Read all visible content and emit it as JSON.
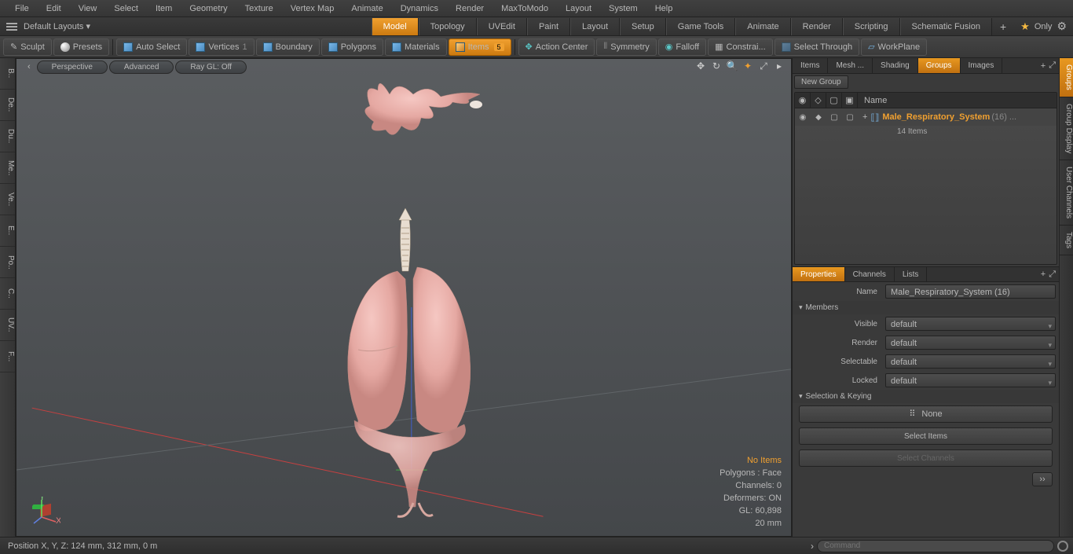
{
  "menu": [
    "File",
    "Edit",
    "View",
    "Select",
    "Item",
    "Geometry",
    "Texture",
    "Vertex Map",
    "Animate",
    "Dynamics",
    "Render",
    "MaxToModo",
    "Layout",
    "System",
    "Help"
  ],
  "layout": {
    "default": "Default Layouts ▾",
    "tabs": [
      "Model",
      "Topology",
      "UVEdit",
      "Paint",
      "Layout",
      "Setup",
      "Game Tools",
      "Animate",
      "Render",
      "Scripting",
      "Schematic Fusion"
    ],
    "active": "Model",
    "only": "Only"
  },
  "toolbar": {
    "sculpt": "Sculpt",
    "presets": "Presets",
    "autoselect": "Auto Select",
    "vertices": "Vertices",
    "boundary": "Boundary",
    "polygons": "Polygons",
    "materials": "Materials",
    "items": "Items",
    "items_badge": "5",
    "actioncenter": "Action Center",
    "symmetry": "Symmetry",
    "falloff": "Falloff",
    "constrai": "Constrai...",
    "selthrough": "Select Through",
    "workplane": "WorkPlane"
  },
  "viewport": {
    "tabs": [
      "Perspective",
      "Advanced",
      "Ray GL: Off"
    ],
    "info": {
      "noitems": "No Items",
      "polygons": "Polygons : Face",
      "channels": "Channels: 0",
      "deformers": "Deformers: ON",
      "gl": "GL: 60,898",
      "scale": "20 mm"
    }
  },
  "rpanel": {
    "tabs1": [
      "Items",
      "Mesh ...",
      "Shading",
      "Groups",
      "Images"
    ],
    "active1": "Groups",
    "newgroup": "New Group",
    "namecol": "Name",
    "item": "Male_Respiratory_System",
    "item_suffix": "(16) ...",
    "item_count": "14 Items",
    "tabs2": [
      "Properties",
      "Channels",
      "Lists"
    ],
    "active2": "Properties",
    "name_lbl": "Name",
    "name_val": "Male_Respiratory_System (16)",
    "section1": "Members",
    "visible": "Visible",
    "render": "Render",
    "selectable": "Selectable",
    "locked": "Locked",
    "default": "default",
    "section2": "Selection & Keying",
    "none": "None",
    "selitems": "Select Items",
    "selch": "Select Channels"
  },
  "rgutter": [
    "Groups",
    "Group Display",
    "User Channels",
    "Tags"
  ],
  "lgutter": [
    "B..",
    "De..",
    "Du..",
    "Me..",
    "Ve..",
    "E..",
    "Po..",
    "C..",
    "UV..",
    "F..."
  ],
  "status": {
    "pos": "Position X, Y, Z:    124 mm, 312 mm, 0 m",
    "cmd": "Command"
  }
}
